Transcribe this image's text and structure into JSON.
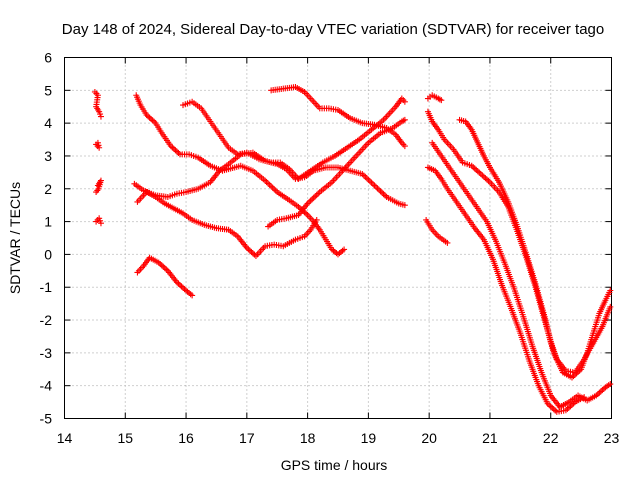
{
  "chart_data": {
    "type": "scatter",
    "title": "Day 148 of 2024, Sidereal Day-to-day VTEC variation (SDTVAR) for receiver tago",
    "xlabel": "GPS time / hours",
    "ylabel": "SDTVAR / TECUs",
    "xlim": [
      14,
      23
    ],
    "ylim": [
      -5,
      6
    ],
    "xticks": [
      "14",
      "15",
      "16",
      "17",
      "18",
      "19",
      "20",
      "21",
      "22",
      "23"
    ],
    "yticks": [
      "-5",
      "-4",
      "-3",
      "-2",
      "-1",
      "0",
      "1",
      "2",
      "3",
      "4",
      "5",
      "6"
    ],
    "grid": true,
    "marker": "+",
    "color": "#ff0000",
    "series": [
      {
        "name": "s1",
        "points": [
          [
            14.5,
            4.95
          ],
          [
            14.55,
            4.85
          ],
          [
            14.52,
            4.5
          ],
          [
            14.57,
            4.35
          ],
          [
            14.6,
            4.2
          ]
        ]
      },
      {
        "name": "s2",
        "points": [
          [
            14.52,
            3.35
          ],
          [
            14.57,
            3.25
          ],
          [
            14.55,
            3.4
          ]
        ]
      },
      {
        "name": "s3",
        "points": [
          [
            14.52,
            1.9
          ],
          [
            14.56,
            2.0
          ],
          [
            14.6,
            2.25
          ],
          [
            14.55,
            2.1
          ]
        ]
      },
      {
        "name": "s4",
        "points": [
          [
            14.52,
            1.0
          ],
          [
            14.57,
            1.1
          ],
          [
            14.6,
            0.95
          ]
        ]
      },
      {
        "name": "s5",
        "points": [
          [
            15.18,
            4.85
          ],
          [
            15.25,
            4.55
          ],
          [
            15.35,
            4.25
          ],
          [
            15.5,
            4.0
          ],
          [
            15.6,
            3.7
          ],
          [
            15.75,
            3.3
          ],
          [
            15.9,
            3.05
          ],
          [
            16.05,
            3.05
          ],
          [
            16.2,
            2.95
          ],
          [
            16.4,
            2.7
          ],
          [
            16.6,
            2.55
          ],
          [
            16.8,
            2.65
          ],
          [
            16.9,
            2.7
          ],
          [
            17.1,
            2.55
          ],
          [
            17.3,
            2.25
          ],
          [
            17.5,
            1.9
          ],
          [
            17.7,
            1.65
          ],
          [
            17.85,
            1.45
          ],
          [
            18.0,
            1.2
          ],
          [
            18.1,
            1.0
          ],
          [
            18.2,
            0.75
          ],
          [
            18.3,
            0.45
          ],
          [
            18.4,
            0.15
          ],
          [
            18.5,
            0.0
          ],
          [
            18.6,
            0.15
          ]
        ]
      },
      {
        "name": "s6",
        "points": [
          [
            15.15,
            2.15
          ],
          [
            15.3,
            1.95
          ],
          [
            15.5,
            1.8
          ],
          [
            15.7,
            1.75
          ],
          [
            15.85,
            1.85
          ],
          [
            16.0,
            1.9
          ],
          [
            16.2,
            2.0
          ],
          [
            16.4,
            2.2
          ],
          [
            16.55,
            2.55
          ],
          [
            16.7,
            2.75
          ],
          [
            16.9,
            3.05
          ],
          [
            17.1,
            3.1
          ],
          [
            17.3,
            2.85
          ],
          [
            17.5,
            2.75
          ],
          [
            17.65,
            2.6
          ],
          [
            17.8,
            2.3
          ],
          [
            17.95,
            2.35
          ],
          [
            18.1,
            2.55
          ],
          [
            18.3,
            2.65
          ],
          [
            18.5,
            2.65
          ],
          [
            18.7,
            2.55
          ],
          [
            18.9,
            2.45
          ],
          [
            19.1,
            2.1
          ],
          [
            19.3,
            1.75
          ],
          [
            19.5,
            1.55
          ],
          [
            19.6,
            1.5
          ]
        ]
      },
      {
        "name": "s7",
        "points": [
          [
            15.2,
            1.6
          ],
          [
            15.35,
            1.9
          ],
          [
            15.5,
            1.75
          ],
          [
            15.65,
            1.55
          ],
          [
            15.8,
            1.4
          ],
          [
            15.95,
            1.25
          ],
          [
            16.1,
            1.05
          ],
          [
            16.3,
            0.9
          ],
          [
            16.5,
            0.8
          ],
          [
            16.7,
            0.75
          ],
          [
            16.85,
            0.55
          ],
          [
            17.0,
            0.2
          ],
          [
            17.15,
            -0.05
          ],
          [
            17.3,
            0.25
          ],
          [
            17.45,
            0.3
          ],
          [
            17.6,
            0.25
          ],
          [
            17.8,
            0.45
          ],
          [
            17.95,
            0.55
          ],
          [
            18.05,
            0.75
          ],
          [
            18.15,
            1.05
          ]
        ]
      },
      {
        "name": "s8",
        "points": [
          [
            15.2,
            -0.55
          ],
          [
            15.3,
            -0.35
          ],
          [
            15.4,
            -0.1
          ],
          [
            15.55,
            -0.25
          ],
          [
            15.7,
            -0.5
          ],
          [
            15.85,
            -0.85
          ],
          [
            16.0,
            -1.1
          ],
          [
            16.1,
            -1.25
          ]
        ]
      },
      {
        "name": "s9",
        "points": [
          [
            15.95,
            4.55
          ],
          [
            16.1,
            4.65
          ],
          [
            16.25,
            4.45
          ],
          [
            16.4,
            4.05
          ],
          [
            16.55,
            3.65
          ],
          [
            16.7,
            3.25
          ],
          [
            16.85,
            3.05
          ],
          [
            17.0,
            3.1
          ],
          [
            17.2,
            2.9
          ],
          [
            17.4,
            2.8
          ],
          [
            17.55,
            2.8
          ],
          [
            17.7,
            2.6
          ],
          [
            17.85,
            2.3
          ],
          [
            18.05,
            2.55
          ],
          [
            18.25,
            2.8
          ],
          [
            18.45,
            3.0
          ],
          [
            18.65,
            3.25
          ],
          [
            18.85,
            3.5
          ],
          [
            19.05,
            3.8
          ],
          [
            19.25,
            4.1
          ],
          [
            19.45,
            4.5
          ],
          [
            19.55,
            4.75
          ],
          [
            19.6,
            4.65
          ]
        ]
      },
      {
        "name": "s10",
        "points": [
          [
            17.4,
            5.0
          ],
          [
            17.6,
            5.05
          ],
          [
            17.8,
            5.1
          ],
          [
            17.95,
            4.95
          ],
          [
            18.05,
            4.75
          ],
          [
            18.2,
            4.45
          ],
          [
            18.35,
            4.45
          ],
          [
            18.5,
            4.4
          ],
          [
            18.7,
            4.15
          ],
          [
            18.9,
            4.0
          ],
          [
            19.1,
            3.95
          ],
          [
            19.3,
            3.85
          ],
          [
            19.45,
            3.65
          ],
          [
            19.55,
            3.4
          ],
          [
            19.6,
            3.3
          ]
        ]
      },
      {
        "name": "s11",
        "points": [
          [
            17.35,
            0.85
          ],
          [
            17.5,
            1.05
          ],
          [
            17.65,
            1.1
          ],
          [
            17.85,
            1.2
          ],
          [
            18.0,
            1.55
          ],
          [
            18.2,
            1.9
          ],
          [
            18.4,
            2.2
          ],
          [
            18.6,
            2.6
          ],
          [
            18.8,
            3.0
          ],
          [
            19.0,
            3.4
          ],
          [
            19.2,
            3.7
          ],
          [
            19.4,
            3.85
          ],
          [
            19.55,
            4.05
          ],
          [
            19.6,
            4.1
          ]
        ]
      },
      {
        "name": "s12",
        "points": [
          [
            19.98,
            4.75
          ],
          [
            20.05,
            4.85
          ],
          [
            20.15,
            4.75
          ],
          [
            20.2,
            4.7
          ]
        ]
      },
      {
        "name": "s13",
        "points": [
          [
            19.98,
            4.35
          ],
          [
            20.05,
            4.05
          ],
          [
            20.15,
            3.8
          ],
          [
            20.25,
            3.5
          ],
          [
            20.4,
            3.2
          ],
          [
            20.55,
            2.8
          ],
          [
            20.7,
            2.7
          ],
          [
            20.85,
            2.45
          ],
          [
            21.0,
            2.2
          ],
          [
            21.15,
            1.9
          ],
          [
            21.3,
            1.45
          ],
          [
            21.45,
            0.7
          ],
          [
            21.6,
            -0.1
          ],
          [
            21.75,
            -1.0
          ],
          [
            21.9,
            -2.0
          ],
          [
            22.05,
            -3.0
          ],
          [
            22.2,
            -3.6
          ],
          [
            22.35,
            -3.75
          ],
          [
            22.5,
            -3.5
          ],
          [
            22.6,
            -3.0
          ],
          [
            22.7,
            -2.4
          ],
          [
            22.8,
            -1.8
          ],
          [
            22.9,
            -1.4
          ],
          [
            22.98,
            -1.1
          ]
        ]
      },
      {
        "name": "s14",
        "points": [
          [
            20.05,
            3.4
          ],
          [
            20.2,
            3.0
          ],
          [
            20.35,
            2.6
          ],
          [
            20.5,
            2.2
          ],
          [
            20.65,
            1.8
          ],
          [
            20.8,
            1.4
          ],
          [
            20.95,
            1.0
          ],
          [
            21.1,
            0.4
          ],
          [
            21.25,
            -0.3
          ],
          [
            21.4,
            -1.05
          ],
          [
            21.55,
            -1.9
          ],
          [
            21.7,
            -2.8
          ],
          [
            21.85,
            -3.6
          ],
          [
            22.0,
            -4.3
          ],
          [
            22.15,
            -4.65
          ],
          [
            22.3,
            -4.5
          ],
          [
            22.45,
            -4.3
          ],
          [
            22.6,
            -4.45
          ],
          [
            22.75,
            -4.3
          ],
          [
            22.9,
            -4.05
          ],
          [
            22.98,
            -3.95
          ]
        ]
      },
      {
        "name": "s15",
        "points": [
          [
            19.98,
            2.65
          ],
          [
            20.1,
            2.55
          ],
          [
            20.2,
            2.3
          ],
          [
            20.3,
            2.0
          ],
          [
            20.45,
            1.6
          ],
          [
            20.6,
            1.2
          ],
          [
            20.75,
            0.8
          ],
          [
            20.9,
            0.45
          ],
          [
            21.05,
            -0.15
          ],
          [
            21.2,
            -0.95
          ],
          [
            21.35,
            -1.65
          ],
          [
            21.5,
            -2.4
          ],
          [
            21.65,
            -3.25
          ],
          [
            21.8,
            -4.0
          ],
          [
            21.95,
            -4.55
          ],
          [
            22.1,
            -4.8
          ],
          [
            22.25,
            -4.75
          ],
          [
            22.4,
            -4.5
          ],
          [
            22.55,
            -4.35
          ]
        ]
      },
      {
        "name": "s16",
        "points": [
          [
            20.5,
            4.1
          ],
          [
            20.6,
            4.05
          ],
          [
            20.7,
            3.8
          ],
          [
            20.8,
            3.4
          ],
          [
            20.9,
            3.0
          ],
          [
            21.0,
            2.65
          ],
          [
            21.15,
            2.2
          ],
          [
            21.3,
            1.6
          ],
          [
            21.45,
            0.85
          ],
          [
            21.6,
            0.0
          ],
          [
            21.75,
            -0.9
          ],
          [
            21.9,
            -1.9
          ],
          [
            22.0,
            -2.65
          ],
          [
            22.1,
            -3.2
          ],
          [
            22.25,
            -3.55
          ],
          [
            22.4,
            -3.6
          ],
          [
            22.55,
            -3.2
          ],
          [
            22.7,
            -2.7
          ],
          [
            22.85,
            -2.2
          ],
          [
            22.98,
            -1.6
          ]
        ]
      },
      {
        "name": "s17",
        "points": [
          [
            19.95,
            1.05
          ],
          [
            20.05,
            0.75
          ],
          [
            20.15,
            0.55
          ],
          [
            20.3,
            0.35
          ]
        ]
      }
    ]
  }
}
